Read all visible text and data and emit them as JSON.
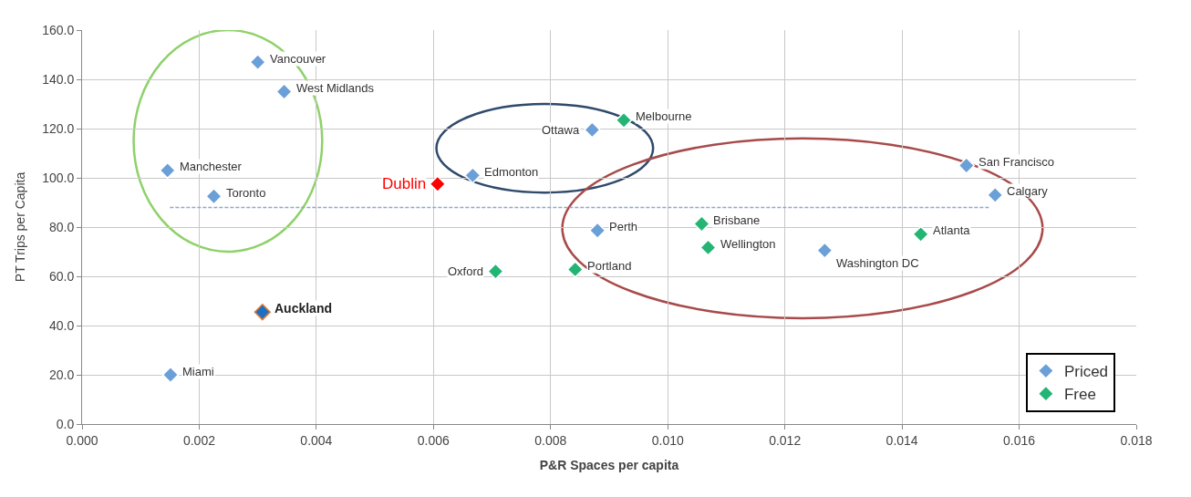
{
  "chart_data": {
    "type": "scatter",
    "xlabel": "P&R Spaces per capita",
    "ylabel": "PT Trips per Capita",
    "marker": "diamond",
    "grid": true,
    "legend": "bottom right",
    "xlim": [
      0,
      0.018
    ],
    "xticks": [
      {
        "value": 0,
        "label": "0.000"
      },
      {
        "value": 0.002,
        "label": "0.002"
      },
      {
        "value": 0.004,
        "label": "0.004"
      },
      {
        "value": 0.006,
        "label": "0.006"
      },
      {
        "value": 0.008,
        "label": "0.008"
      },
      {
        "value": 0.01,
        "label": "0.010"
      },
      {
        "value": 0.012,
        "label": "0.012"
      },
      {
        "value": 0.014,
        "label": "0.014"
      },
      {
        "value": 0.016,
        "label": "0.016"
      },
      {
        "value": 0.018,
        "label": "0.018"
      }
    ],
    "ylim": [
      0,
      160
    ],
    "yticks": [
      {
        "value": 0,
        "label": "0.0"
      },
      {
        "value": 20,
        "label": "20.0"
      },
      {
        "value": 40,
        "label": "40.0"
      },
      {
        "value": 60,
        "label": "60.0"
      },
      {
        "value": 80,
        "label": "80.0"
      },
      {
        "value": 100,
        "label": "100.0"
      },
      {
        "value": 120,
        "label": "120.0"
      },
      {
        "value": 140,
        "label": "140.0"
      },
      {
        "value": 160,
        "label": "160.0"
      }
    ],
    "series": [
      {
        "name": "Priced",
        "color": "#6a9fd8",
        "x": [
          0.003,
          0.00345,
          0.00146,
          0.00225,
          0.00151,
          0.00667,
          0.00871,
          0.0088,
          0.01268,
          0.0151,
          0.01559
        ],
        "values": [
          147,
          135,
          103,
          92.5,
          20,
          101,
          119.5,
          78.6,
          70.5,
          105,
          93
        ]
      },
      {
        "name": "Free",
        "color": "#22b573",
        "x": [
          0.00925,
          0.00706,
          0.00842,
          0.01058,
          0.01069,
          0.01432
        ],
        "values": [
          123.4,
          62,
          62.8,
          81.3,
          71.7,
          77.1
        ]
      },
      {
        "color": "#1f6fc0",
        "x": [
          0.00308
        ],
        "values": [
          45.5
        ]
      },
      {
        "color": "#ff0000",
        "x": [
          0.00607
        ],
        "values": [
          97.5
        ]
      },
      {
        "type": "line",
        "line_style": "dashed",
        "marker": "none",
        "color": "#8fa8c8",
        "x": [
          0.0015,
          0.0155
        ],
        "values": [
          88,
          88
        ]
      }
    ],
    "annotations": [
      {
        "text": "Vancouver",
        "x": 0.003,
        "y": 147
      },
      {
        "text": "West Midlands",
        "x": 0.00345,
        "y": 135
      },
      {
        "text": "Manchester",
        "x": 0.00146,
        "y": 103
      },
      {
        "text": "Toronto",
        "x": 0.00225,
        "y": 92.5
      },
      {
        "text": "Miami",
        "x": 0.00151,
        "y": 20
      },
      {
        "text": "Edmonton",
        "x": 0.00667,
        "y": 101
      },
      {
        "text": "Ottawa",
        "x": 0.00871,
        "y": 119.5
      },
      {
        "text": "Perth",
        "x": 0.0088,
        "y": 78.6
      },
      {
        "text": "Washington DC",
        "x": 0.01268,
        "y": 70.5
      },
      {
        "text": "San Francisco",
        "x": 0.0151,
        "y": 105
      },
      {
        "text": "Calgary",
        "x": 0.01559,
        "y": 93
      },
      {
        "text": "Melbourne",
        "x": 0.00925,
        "y": 123.4
      },
      {
        "text": "Oxford",
        "x": 0.00706,
        "y": 62
      },
      {
        "text": "Portland",
        "x": 0.00842,
        "y": 62.8
      },
      {
        "text": "Brisbane",
        "x": 0.01058,
        "y": 81.3
      },
      {
        "text": "Wellington",
        "x": 0.01069,
        "y": 71.7
      },
      {
        "text": "Atlanta",
        "x": 0.01432,
        "y": 77.1
      },
      {
        "text": "Auckland",
        "x": 0.00308,
        "y": 45.5
      },
      {
        "text": "Dublin",
        "x": 0.00607,
        "y": 97.5
      }
    ]
  }
}
